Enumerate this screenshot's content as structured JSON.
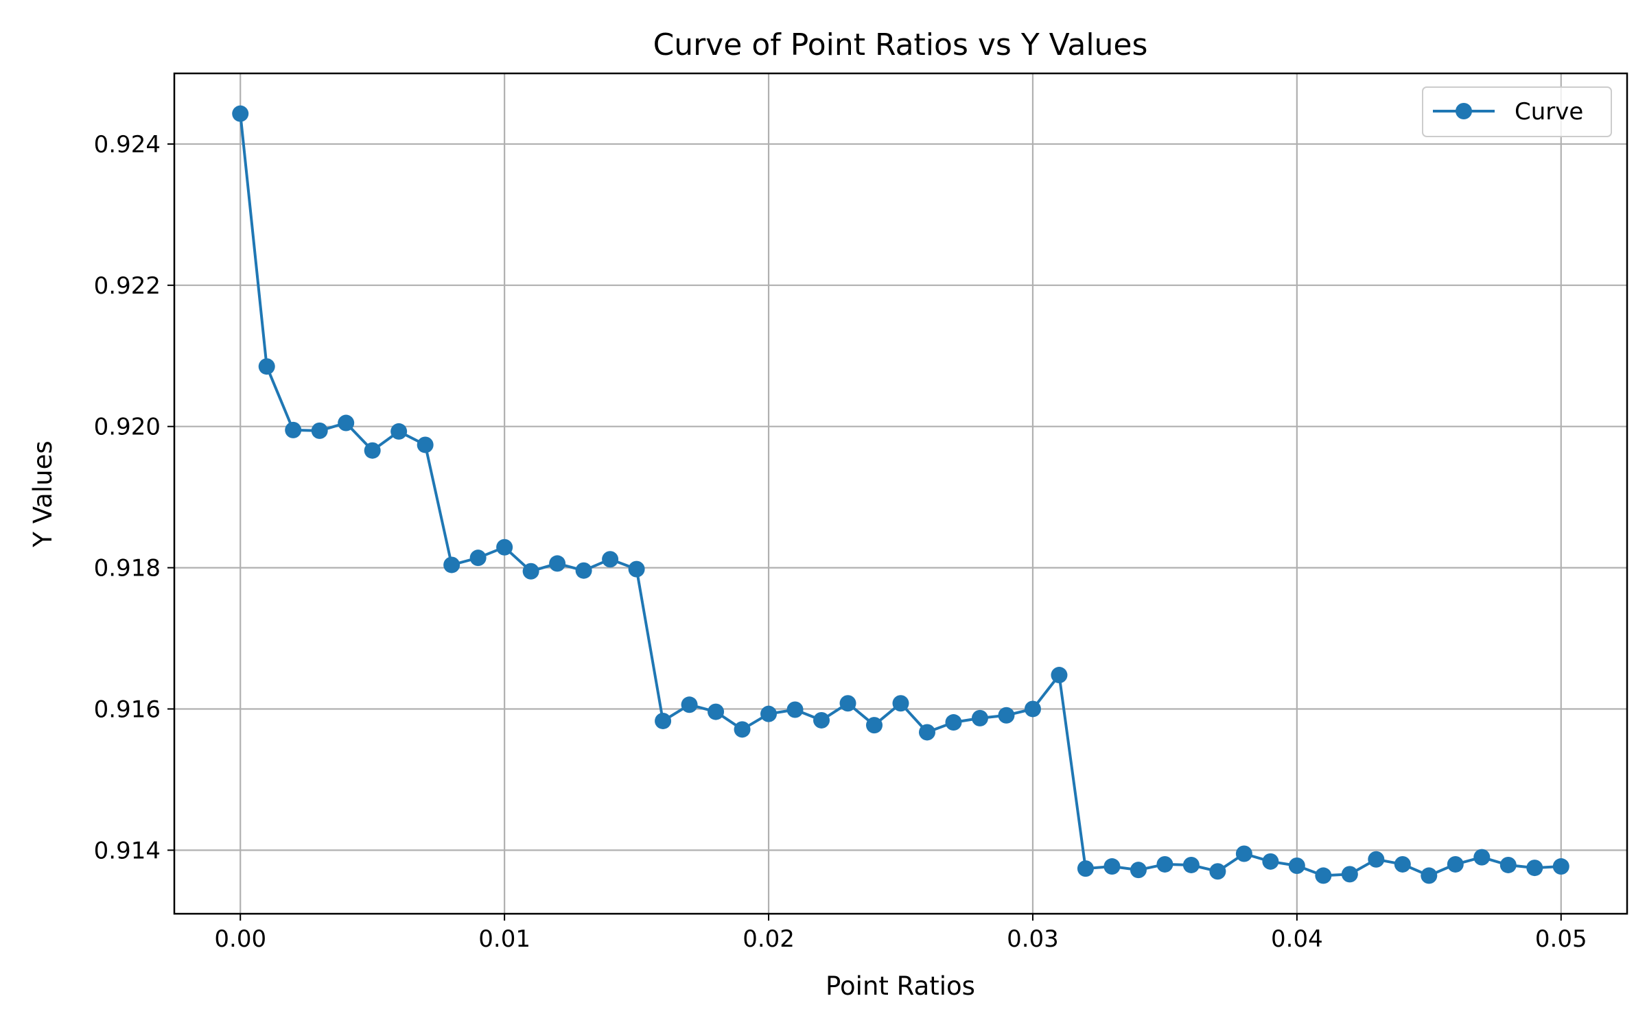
{
  "chart_data": {
    "type": "line",
    "title": "Curve of Point Ratios vs Y Values",
    "xlabel": "Point Ratios",
    "ylabel": "Y Values",
    "xlim": [
      -0.0025,
      0.0525
    ],
    "ylim": [
      0.9131,
      0.925
    ],
    "xticks": [
      0.0,
      0.01,
      0.02,
      0.03,
      0.04,
      0.05
    ],
    "xtick_labels": [
      "0.00",
      "0.01",
      "0.02",
      "0.03",
      "0.04",
      "0.05"
    ],
    "yticks": [
      0.914,
      0.916,
      0.918,
      0.92,
      0.922,
      0.924
    ],
    "ytick_labels": [
      "0.914",
      "0.916",
      "0.918",
      "0.920",
      "0.922",
      "0.924"
    ],
    "grid": true,
    "legend_position": "top-right",
    "series": [
      {
        "name": "Curve",
        "color": "#1f77b4",
        "marker": "circle",
        "x": [
          0.0,
          0.001,
          0.002,
          0.003,
          0.004,
          0.005,
          0.006,
          0.007,
          0.008,
          0.009,
          0.01,
          0.011,
          0.012,
          0.013,
          0.014,
          0.015,
          0.016,
          0.017,
          0.018,
          0.019,
          0.02,
          0.021,
          0.022,
          0.023,
          0.024,
          0.025,
          0.026,
          0.027,
          0.028,
          0.029,
          0.03,
          0.031,
          0.032,
          0.033,
          0.034,
          0.035,
          0.036,
          0.037,
          0.038,
          0.039,
          0.04,
          0.041,
          0.042,
          0.043,
          0.044,
          0.045,
          0.046,
          0.047,
          0.048,
          0.049,
          0.05
        ],
        "y": [
          0.92443,
          0.92085,
          0.91995,
          0.91994,
          0.92005,
          0.91966,
          0.91993,
          0.91974,
          0.91804,
          0.91814,
          0.91829,
          0.91795,
          0.91806,
          0.91796,
          0.91812,
          0.91798,
          0.91583,
          0.91606,
          0.91596,
          0.91571,
          0.91593,
          0.91599,
          0.91584,
          0.91608,
          0.91577,
          0.91608,
          0.91567,
          0.91581,
          0.91587,
          0.91591,
          0.916,
          0.91648,
          0.91374,
          0.91377,
          0.91372,
          0.9138,
          0.91379,
          0.9137,
          0.91395,
          0.91384,
          0.91378,
          0.91364,
          0.91366,
          0.91387,
          0.9138,
          0.91364,
          0.9138,
          0.9139,
          0.91379,
          0.91375,
          0.91377
        ]
      }
    ]
  }
}
